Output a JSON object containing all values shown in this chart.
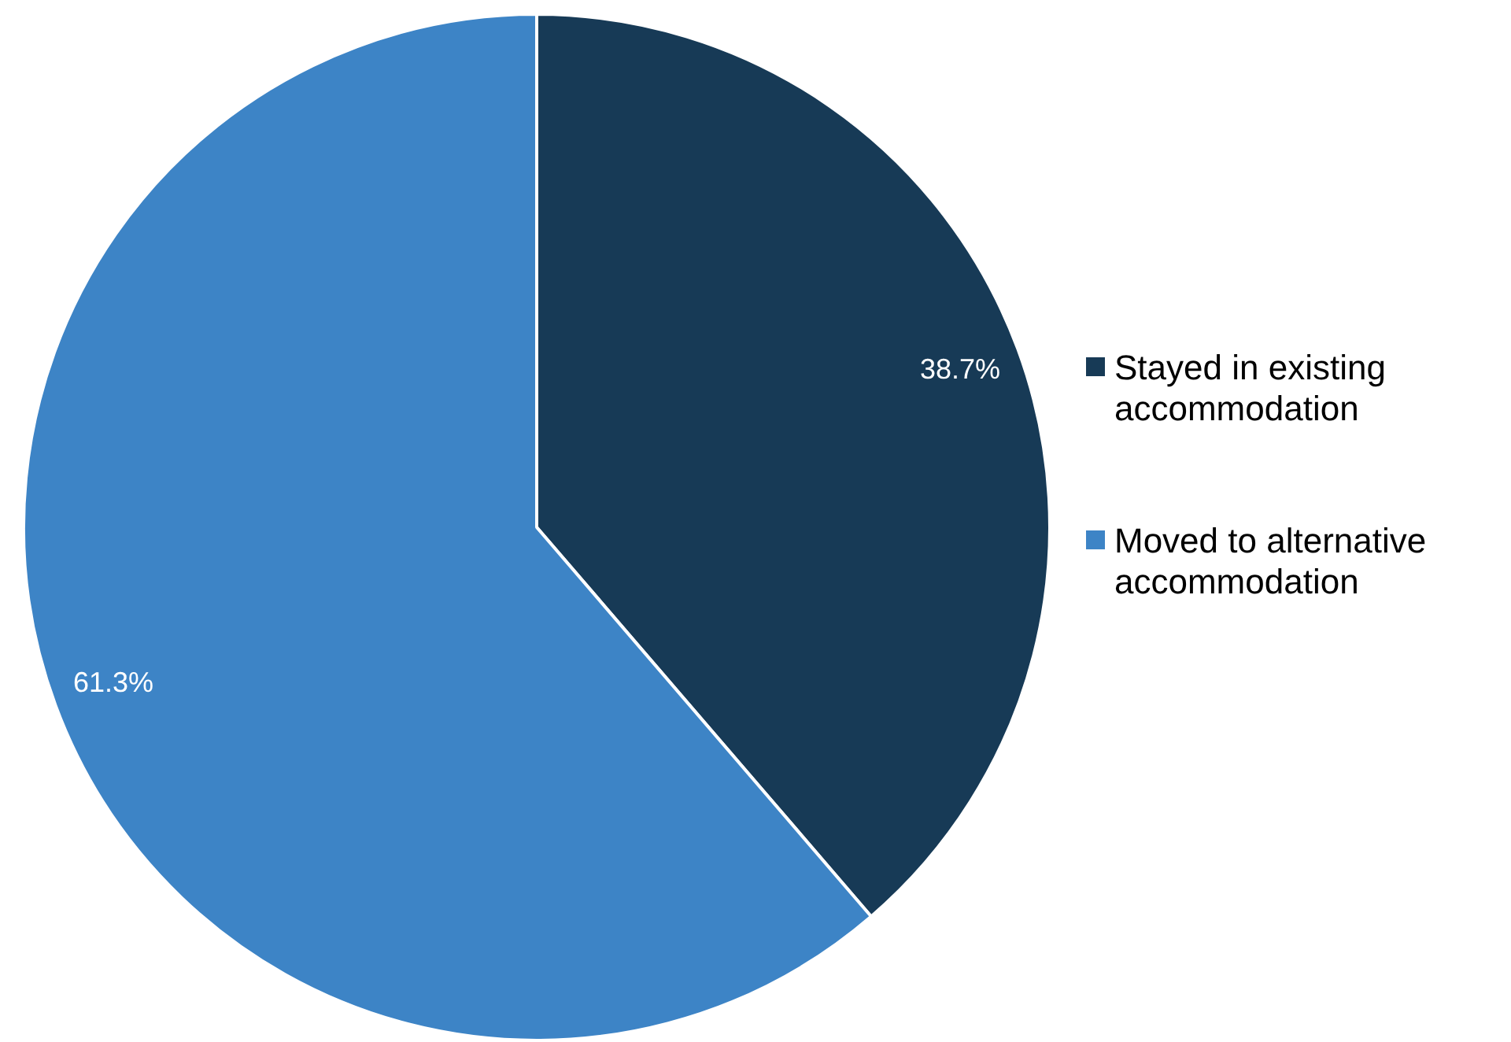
{
  "chart_data": {
    "type": "pie",
    "categories": [
      "Stayed in existing accommodation",
      "Moved to alternative accommodation"
    ],
    "values": [
      38.7,
      61.3
    ],
    "colors": [
      "#173a56",
      "#3d84c6"
    ],
    "value_labels": [
      "38.7%",
      "61.3%"
    ],
    "legend": "right"
  }
}
